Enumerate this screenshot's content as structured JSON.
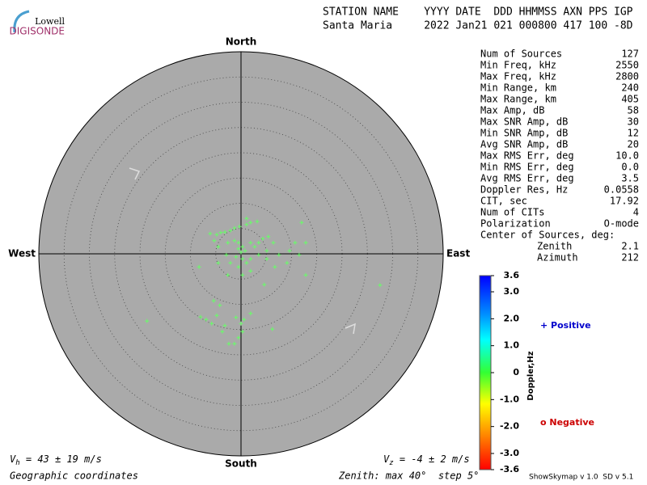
{
  "chart_data": {
    "type": "skymap",
    "logo": {
      "top": "Lowell",
      "bottom": "DIGISONDE"
    },
    "header": [
      "STATION NAME    YYYY DATE  DDD HHMMSS AXN PPS IGP",
      "Santa Maria     2022 Jan21 021 000800 417 100 -8D"
    ],
    "directions": {
      "north": "North",
      "south": "South",
      "east": "East",
      "west": "West"
    },
    "zenith_max": 40,
    "zenith_step": 5,
    "stats": [
      [
        "Num of Sources",
        "127"
      ],
      [
        "Min Freq, kHz",
        "2550"
      ],
      [
        "Max Freq, kHz",
        "2800"
      ],
      [
        "Min Range, km",
        "240"
      ],
      [
        "Max Range, km",
        "405"
      ],
      [
        "Max Amp, dB",
        "58"
      ],
      [
        "Max SNR Amp, dB",
        "30"
      ],
      [
        "Min SNR Amp, dB",
        "12"
      ],
      [
        "Avg SNR Amp, dB",
        "20"
      ],
      [
        "Max RMS Err, deg",
        "10.0"
      ],
      [
        "Min RMS Err, deg",
        "0.0"
      ],
      [
        "Avg RMS Err, deg",
        "3.5"
      ],
      [
        "Doppler Res, Hz",
        "0.0558"
      ],
      [
        "CIT, sec",
        "17.92"
      ],
      [
        "Num of CITs",
        "4"
      ],
      [
        "Polarization",
        "O-mode"
      ]
    ],
    "center_title": "Center of Sources, deg:",
    "center": [
      [
        "Zenith",
        "2.1"
      ],
      [
        "Azimuth",
        "212"
      ]
    ],
    "colorbar": {
      "label": "Doppler,Hz",
      "lim": [
        -3.6,
        3.6
      ],
      "ticks": [
        {
          "value": 3.6,
          "label": "3.6"
        },
        {
          "value": 3,
          "label": "3.0"
        },
        {
          "value": 2,
          "label": "2.0"
        },
        {
          "value": 1,
          "label": "1.0"
        },
        0,
        {
          "value": -1,
          "label": "-1.0"
        },
        {
          "value": -2,
          "label": "-2.0"
        },
        {
          "value": -3,
          "label": "-3.0"
        },
        {
          "value": -3.6,
          "label": "-3.6"
        }
      ]
    },
    "legend": {
      "positive": "+ Positive",
      "negative": "o Negative"
    },
    "sources": {
      "color": "#66ff66",
      "east": [
        -6.1,
        -4.8,
        -4.0,
        -3.2,
        -2.1,
        -1.3,
        -0.3,
        1.1,
        1.9,
        3.2,
        1.1,
        12.0,
        -5.3,
        -4.5,
        -2.6,
        -1.3,
        -0.5,
        0.3,
        0.8,
        0.0,
        -0.5,
        1.9,
        2.7,
        3.5,
        4.3,
        5.4,
        6.4,
        5.1,
        3.5,
        1.9,
        1.1,
        0.3,
        -1.0,
        -2.1,
        -2.9,
        -4.5,
        -8.3,
        0.3,
        1.9,
        5.1,
        7.5,
        9.6,
        10.7,
        12.8,
        11.5,
        9.1,
        4.6,
        12.8,
        27.5,
        6.7,
        -2.6,
        -0.5,
        -5.4,
        -4.2,
        -4.8,
        -8.0,
        -6.9,
        -5.8,
        -3.2,
        -1.0,
        0.0,
        0.3,
        -0.5,
        -1.3,
        -2.4,
        1.9,
        0.6,
        -18.6,
        6.2,
        -3.7
      ],
      "north": [
        4.0,
        3.8,
        4.2,
        4.3,
        4.6,
        5.1,
        5.4,
        5.8,
        6.2,
        6.4,
        7.0,
        6.2,
        2.6,
        1.4,
        2.2,
        2.6,
        2.2,
        1.4,
        0.6,
        0.3,
        1.0,
        2.2,
        1.4,
        2.2,
        3.0,
        3.4,
        2.2,
        0.6,
        -0.2,
        -1.0,
        -1.8,
        -1.0,
        -0.6,
        -1.8,
        -0.2,
        -1.8,
        -2.6,
        -4.2,
        -3.4,
        -1.0,
        -0.2,
        0.6,
        2.2,
        2.2,
        -0.2,
        -1.8,
        -6.1,
        -4.2,
        -6.2,
        -2.6,
        -4.2,
        -2.6,
        -9.3,
        -10.2,
        -12.2,
        -12.5,
        -13.0,
        -13.8,
        -14.2,
        -12.6,
        -13.8,
        -15.4,
        -16.6,
        -17.8,
        -17.8,
        -11.8,
        -13.0,
        -13.3,
        -14.9,
        -15.4
      ]
    },
    "vh": {
      "symbol": "V",
      "sub": "h",
      "text": " = 43 ± 19 m/s"
    },
    "vz": {
      "symbol": "V",
      "sub": "z",
      "text": " = -4 ± 2 m/s"
    },
    "footer": {
      "coords": "Geographic coordinates",
      "zenith": "Zenith: max 40°  step 5°",
      "version": "ShowSkymap v 1.0  SD v 5.1"
    }
  }
}
